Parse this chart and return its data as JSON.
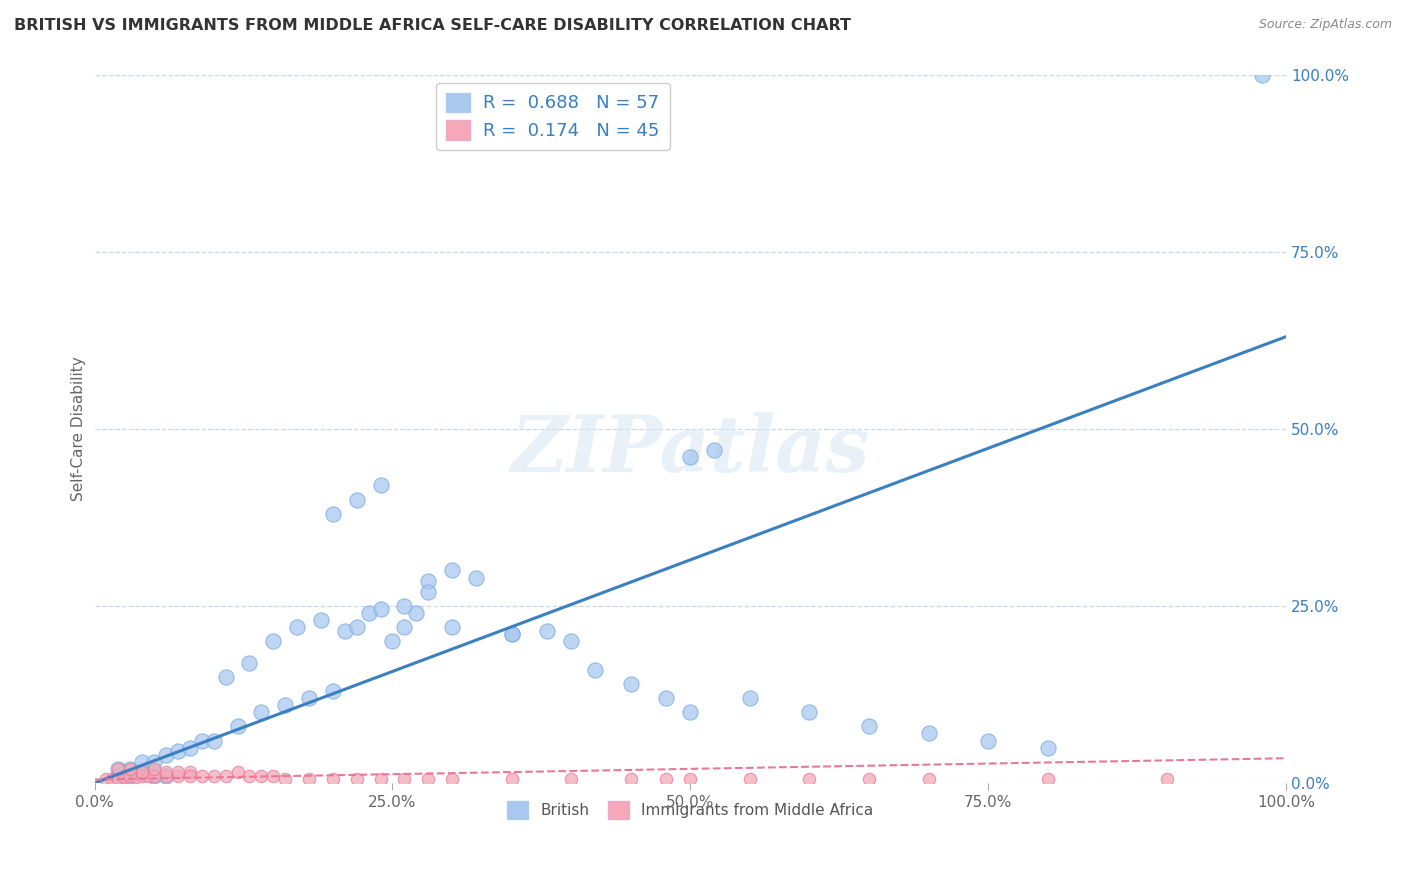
{
  "title": "BRITISH VS IMMIGRANTS FROM MIDDLE AFRICA SELF-CARE DISABILITY CORRELATION CHART",
  "source": "Source: ZipAtlas.com",
  "ylabel": "Self-Care Disability",
  "watermark": "ZIPatlas",
  "r_british": 0.688,
  "n_british": 57,
  "r_immigrants": 0.174,
  "n_immigrants": 45,
  "xlim": [
    0.0,
    1.0
  ],
  "ylim": [
    0.0,
    1.0
  ],
  "xtick_labels": [
    "0.0%",
    "25.0%",
    "50.0%",
    "75.0%",
    "100.0%"
  ],
  "xtick_vals": [
    0.0,
    0.25,
    0.5,
    0.75,
    1.0
  ],
  "ytick_vals": [
    0.0,
    0.25,
    0.5,
    0.75,
    1.0
  ],
  "ytick_labels_right": [
    "0.0%",
    "25.0%",
    "50.0%",
    "75.0%",
    "100.0%"
  ],
  "british_color": "#a8c8f0",
  "british_edge_color": "#7aabdf",
  "immigrants_color": "#f4a8b8",
  "immigrants_edge_color": "#e87898",
  "british_line_color": "#3a7fc1",
  "immigrants_line_color": "#e87898",
  "grid_color": "#c8d8e8",
  "background_color": "#ffffff",
  "title_color": "#333333",
  "legend_r_color": "#3a7fc1",
  "british_scatter_x": [
    0.98,
    0.02,
    0.03,
    0.04,
    0.05,
    0.06,
    0.02,
    0.03,
    0.04,
    0.05,
    0.06,
    0.07,
    0.08,
    0.09,
    0.1,
    0.12,
    0.14,
    0.16,
    0.18,
    0.2,
    0.11,
    0.13,
    0.15,
    0.17,
    0.19,
    0.21,
    0.22,
    0.23,
    0.24,
    0.25,
    0.26,
    0.27,
    0.28,
    0.3,
    0.32,
    0.35,
    0.38,
    0.4,
    0.42,
    0.45,
    0.48,
    0.5,
    0.55,
    0.6,
    0.65,
    0.7,
    0.75,
    0.8,
    0.5,
    0.52,
    0.2,
    0.22,
    0.24,
    0.26,
    0.28,
    0.3,
    0.35
  ],
  "british_scatter_y": [
    1.0,
    0.01,
    0.01,
    0.015,
    0.01,
    0.01,
    0.02,
    0.02,
    0.03,
    0.03,
    0.04,
    0.045,
    0.05,
    0.06,
    0.06,
    0.08,
    0.1,
    0.11,
    0.12,
    0.13,
    0.15,
    0.17,
    0.2,
    0.22,
    0.23,
    0.215,
    0.22,
    0.24,
    0.245,
    0.2,
    0.22,
    0.24,
    0.285,
    0.3,
    0.29,
    0.21,
    0.215,
    0.2,
    0.16,
    0.14,
    0.12,
    0.1,
    0.12,
    0.1,
    0.08,
    0.07,
    0.06,
    0.05,
    0.46,
    0.47,
    0.38,
    0.4,
    0.42,
    0.25,
    0.27,
    0.22,
    0.21
  ],
  "immigrants_scatter_x": [
    0.01,
    0.015,
    0.02,
    0.025,
    0.03,
    0.035,
    0.04,
    0.045,
    0.05,
    0.06,
    0.07,
    0.08,
    0.09,
    0.1,
    0.11,
    0.12,
    0.13,
    0.14,
    0.15,
    0.02,
    0.03,
    0.04,
    0.05,
    0.06,
    0.07,
    0.08,
    0.16,
    0.18,
    0.2,
    0.22,
    0.24,
    0.26,
    0.28,
    0.3,
    0.35,
    0.4,
    0.45,
    0.5,
    0.55,
    0.6,
    0.65,
    0.7,
    0.8,
    0.9,
    0.48
  ],
  "immigrants_scatter_y": [
    0.005,
    0.005,
    0.005,
    0.008,
    0.01,
    0.008,
    0.01,
    0.01,
    0.01,
    0.01,
    0.01,
    0.015,
    0.01,
    0.01,
    0.01,
    0.015,
    0.01,
    0.01,
    0.01,
    0.02,
    0.02,
    0.015,
    0.02,
    0.015,
    0.015,
    0.01,
    0.005,
    0.005,
    0.005,
    0.005,
    0.005,
    0.005,
    0.005,
    0.005,
    0.005,
    0.005,
    0.005,
    0.005,
    0.005,
    0.005,
    0.005,
    0.005,
    0.005,
    0.005,
    0.005
  ],
  "british_line_x": [
    0.0,
    1.0
  ],
  "british_line_y": [
    0.0,
    0.63
  ],
  "immigrants_line_x": [
    0.0,
    1.0
  ],
  "immigrants_line_y": [
    0.005,
    0.035
  ]
}
